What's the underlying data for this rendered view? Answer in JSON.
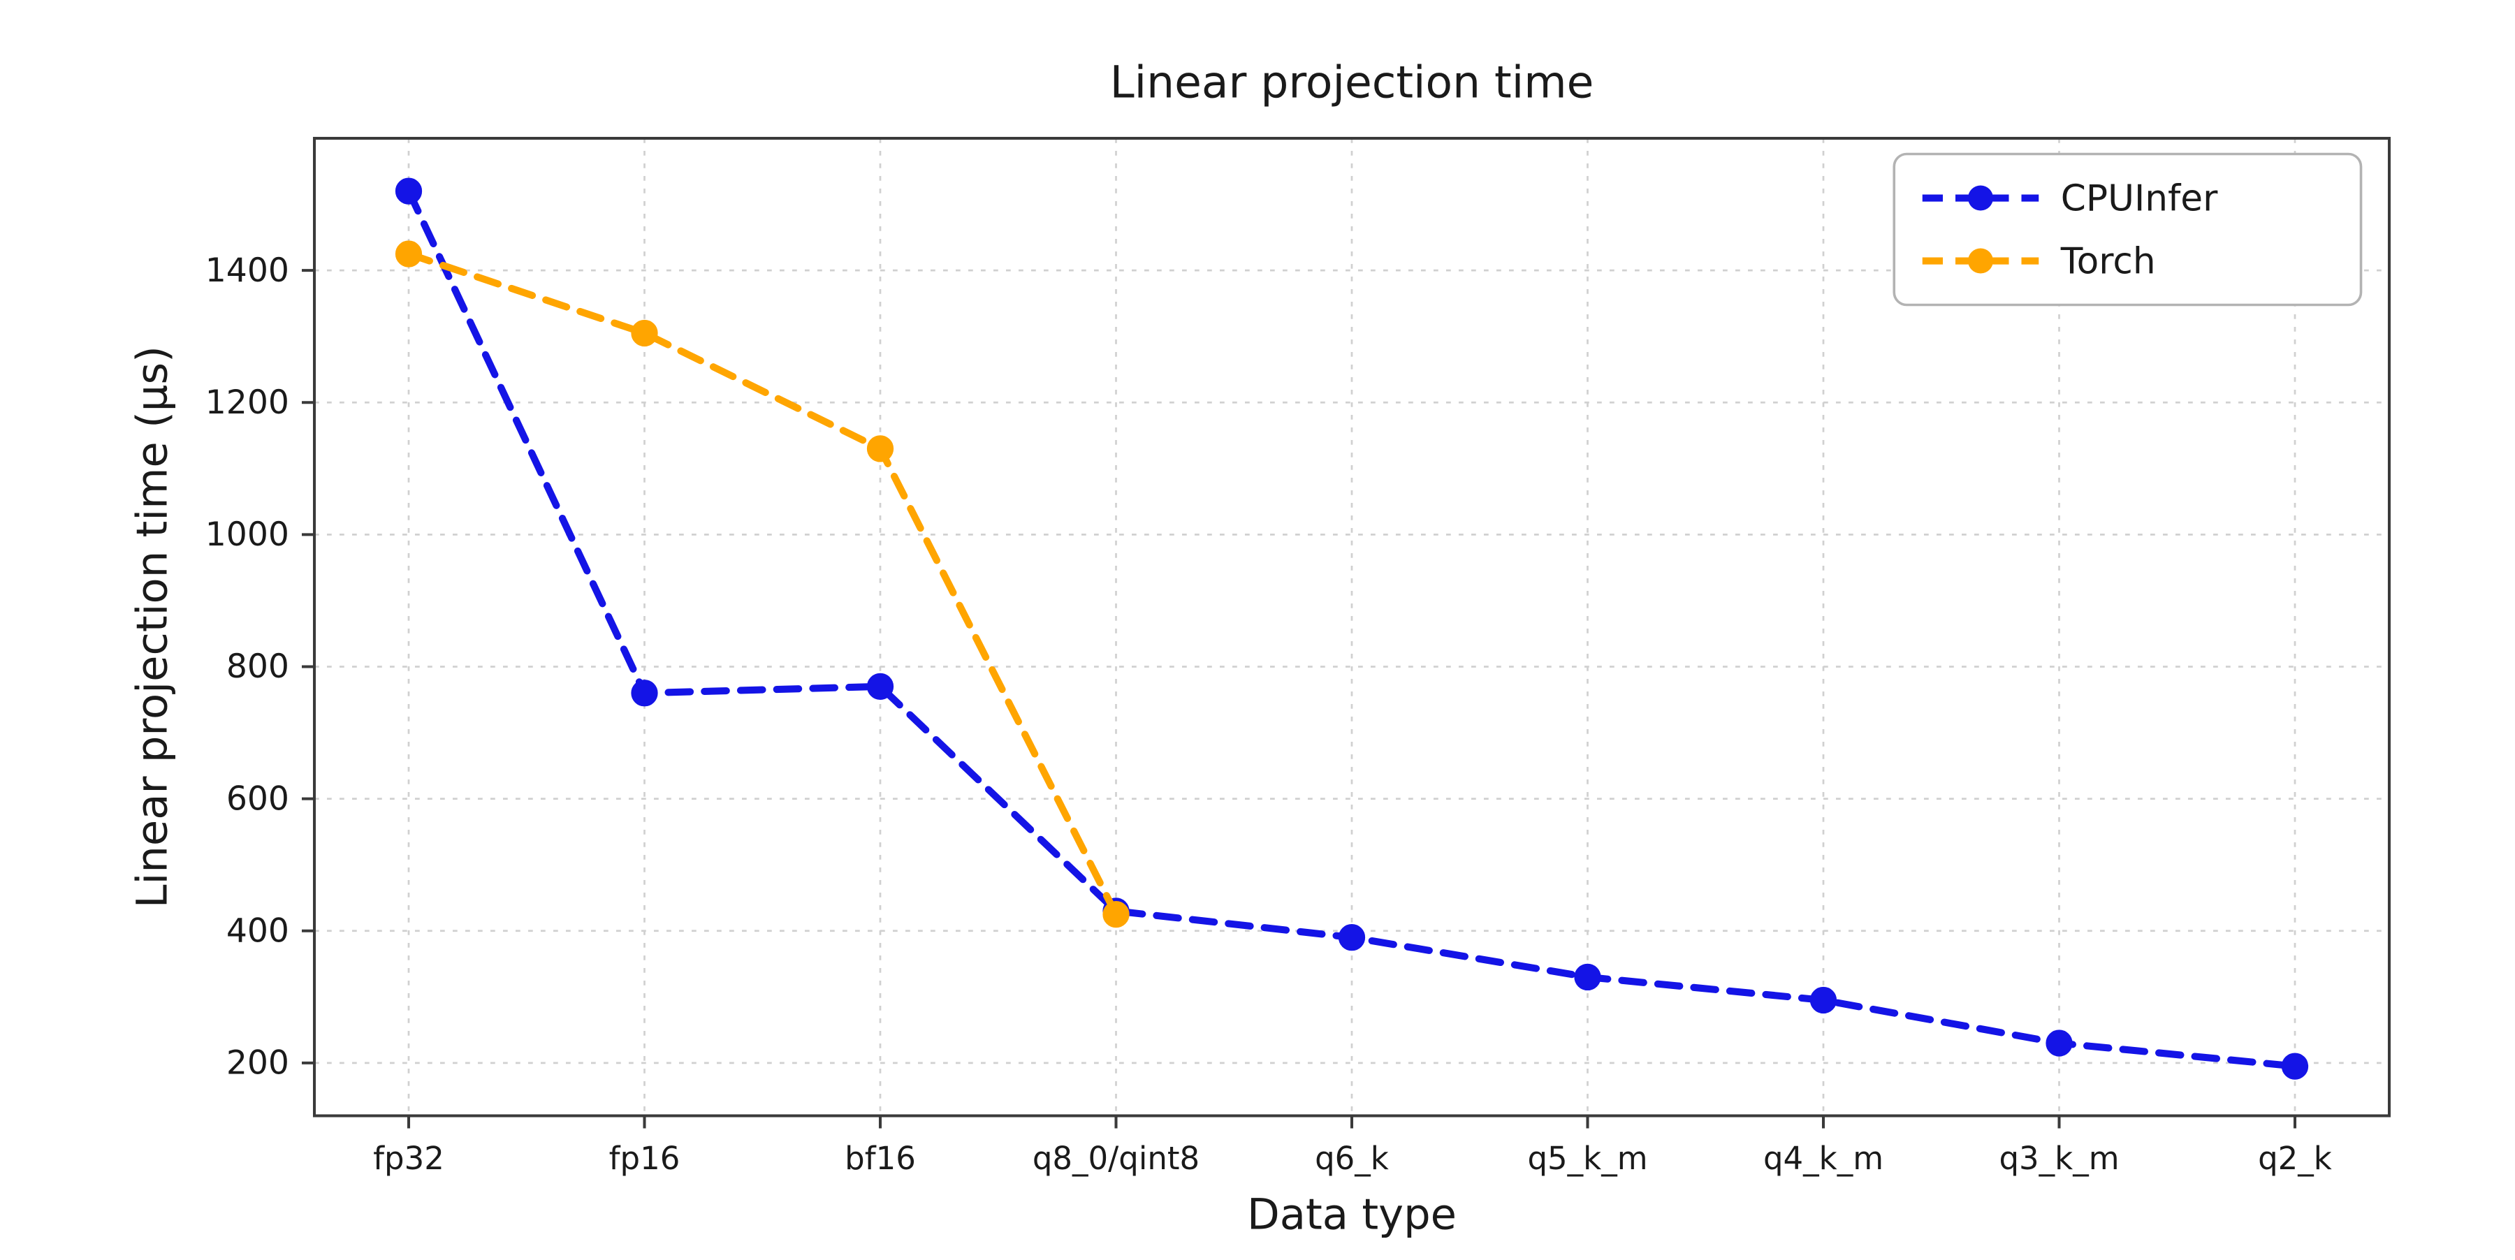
{
  "chart_data": {
    "type": "line",
    "title": "Linear projection time",
    "xlabel": "Data type",
    "ylabel": "Linear projection time (µs)",
    "categories": [
      "fp32",
      "fp16",
      "bf16",
      "q8_0/qint8",
      "q6_k",
      "q5_k_m",
      "q4_k_m",
      "q3_k_m",
      "q2_k"
    ],
    "yticks": [
      200,
      400,
      600,
      800,
      1000,
      1200,
      1400
    ],
    "ylim": [
      120,
      1600
    ],
    "grid": true,
    "legend_position": "upper right",
    "line_style": "dashed",
    "marker": "circle",
    "series": [
      {
        "name": "CPUInfer",
        "color": "#1414e6",
        "values": [
          1520,
          760,
          770,
          430,
          390,
          330,
          295,
          230,
          195
        ]
      },
      {
        "name": "Torch",
        "color": "#ffa500",
        "values": [
          1425,
          1305,
          1130,
          425,
          null,
          null,
          null,
          null,
          null
        ]
      }
    ]
  }
}
